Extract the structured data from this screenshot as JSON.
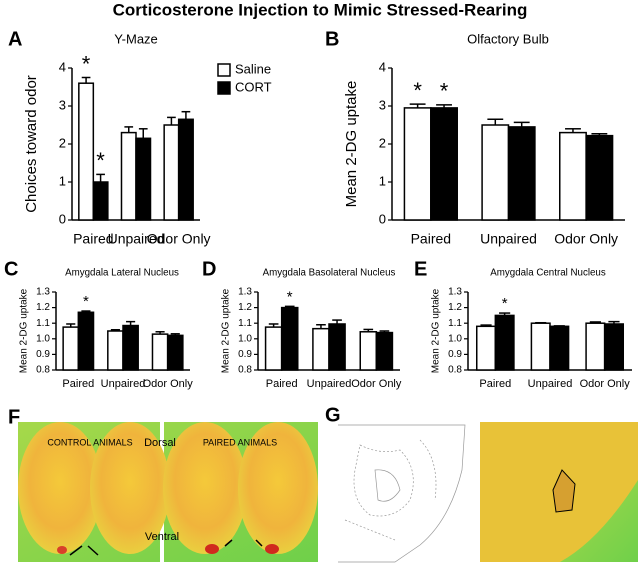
{
  "title": "Corticosterone Injection to Mimic Stressed-Rearing",
  "chart_data": [
    {
      "type": "bar",
      "panel_label": "A",
      "title": "Y-Maze",
      "ylabel": "Choices toward odor",
      "categories": [
        "Paired",
        "Unpaired",
        "Odor Only"
      ],
      "series": [
        {
          "name": "Saline",
          "color": "#ffffff",
          "values": [
            3.6,
            2.3,
            2.5
          ],
          "errors": [
            0.15,
            0.15,
            0.2
          ],
          "significance": [
            "*",
            null,
            null
          ]
        },
        {
          "name": "CORT",
          "color": "#000000",
          "values": [
            1.0,
            2.15,
            2.65
          ],
          "errors": [
            0.2,
            0.25,
            0.2
          ],
          "significance": [
            "*",
            null,
            null
          ]
        }
      ],
      "ylim": [
        0,
        4
      ],
      "yticks": [
        0,
        1,
        2,
        3,
        4
      ],
      "legend": "upper right"
    },
    {
      "type": "bar",
      "panel_label": "B",
      "title": "Olfactory Bulb",
      "ylabel": "Mean 2-DG uptake",
      "categories": [
        "Paired",
        "Unpaired",
        "Odor Only"
      ],
      "series": [
        {
          "name": "Saline",
          "color": "#ffffff",
          "values": [
            2.95,
            2.5,
            2.3
          ],
          "errors": [
            0.1,
            0.15,
            0.1
          ],
          "significance": [
            "*",
            null,
            null
          ]
        },
        {
          "name": "CORT",
          "color": "#000000",
          "values": [
            2.95,
            2.45,
            2.22
          ],
          "errors": [
            0.08,
            0.12,
            0.05
          ],
          "significance": [
            "*",
            null,
            null
          ]
        }
      ],
      "ylim": [
        0,
        4
      ],
      "yticks": [
        0,
        1,
        2,
        3,
        4
      ]
    },
    {
      "type": "bar",
      "panel_label": "C",
      "title": "Amygdala Lateral Nucleus",
      "ylabel": "Mean 2-DG uptake",
      "categories": [
        "Paired",
        "Unpaired",
        "Odor Only"
      ],
      "series": [
        {
          "name": "Saline",
          "color": "#ffffff",
          "values": [
            1.075,
            1.05,
            1.03
          ],
          "errors": [
            0.02,
            0.008,
            0.015
          ],
          "significance": [
            null,
            null,
            null
          ]
        },
        {
          "name": "CORT",
          "color": "#000000",
          "values": [
            1.17,
            1.085,
            1.022
          ],
          "errors": [
            0.008,
            0.025,
            0.01
          ],
          "significance": [
            "*",
            null,
            null
          ]
        }
      ],
      "ylim": [
        0.8,
        1.3
      ],
      "yticks": [
        0.8,
        0.9,
        {
          "value": 1,
          "label": "1.0"
        },
        1.1,
        1.2,
        1.3
      ]
    },
    {
      "type": "bar",
      "panel_label": "D",
      "title": "Amygdala Basolateral Nucleus",
      "ylabel": "Mean 2-DG uptake",
      "categories": [
        "Paired",
        "Unpaired",
        "Odor Only"
      ],
      "series": [
        {
          "name": "Saline",
          "color": "#ffffff",
          "values": [
            1.075,
            1.065,
            1.045
          ],
          "errors": [
            0.02,
            0.025,
            0.015
          ],
          "significance": [
            null,
            null,
            null
          ]
        },
        {
          "name": "CORT",
          "color": "#000000",
          "values": [
            1.2,
            1.095,
            1.04
          ],
          "errors": [
            0.008,
            0.025,
            0.01
          ],
          "significance": [
            "*",
            null,
            null
          ]
        }
      ],
      "ylim": [
        0.8,
        1.3
      ],
      "yticks": [
        0.8,
        0.9,
        {
          "value": 1,
          "label": "1.0"
        },
        1.1,
        1.2,
        1.3
      ]
    },
    {
      "type": "bar",
      "panel_label": "E",
      "title": "Amygdala Central Nucleus",
      "ylabel": "Mean 2-DG uptake",
      "categories": [
        "Paired",
        "Unpaired",
        "Odor Only"
      ],
      "series": [
        {
          "name": "Saline",
          "color": "#ffffff",
          "values": [
            1.08,
            1.1,
            1.1
          ],
          "errors": [
            0.008,
            0.003,
            0.008
          ],
          "significance": [
            null,
            null,
            null
          ]
        },
        {
          "name": "CORT",
          "color": "#000000",
          "values": [
            1.15,
            1.08,
            1.095
          ],
          "errors": [
            0.015,
            0.003,
            0.015
          ],
          "significance": [
            "*",
            null,
            null
          ]
        }
      ],
      "ylim": [
        0.8,
        1.3
      ],
      "yticks": [
        0.8,
        0.9,
        {
          "value": 1,
          "label": "1.0"
        },
        1.1,
        1.2,
        1.3
      ]
    }
  ],
  "images": [
    {
      "panel_label": "F",
      "texts": [
        "CONTROL ANIMALS",
        "Dorsal",
        "PAIRED ANIMALS",
        "Ventral"
      ]
    },
    {
      "panel_label": "G"
    }
  ]
}
